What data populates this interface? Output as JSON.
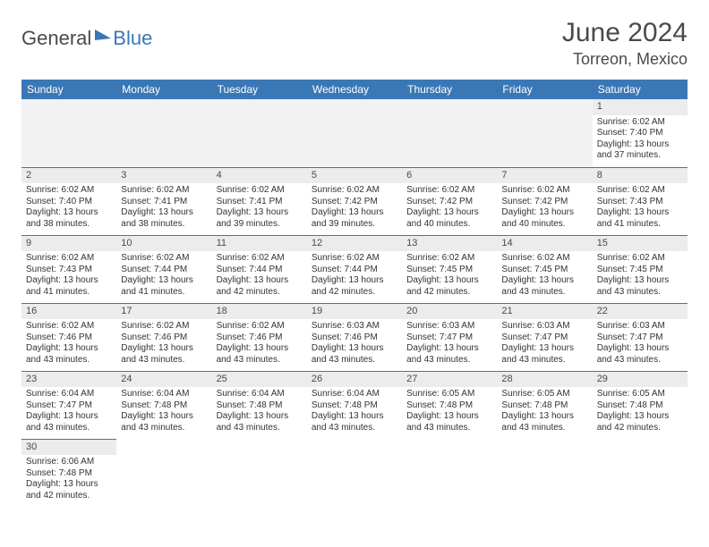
{
  "brand": {
    "part1": "General",
    "part2": "Blue"
  },
  "title": "June 2024",
  "location": "Torreon, Mexico",
  "colors": {
    "header_bg": "#3a78b5",
    "header_fg": "#ffffff",
    "daynum_bg": "#ececec",
    "border": "#3a78b5",
    "text": "#333333"
  },
  "fonts": {
    "title_pt": 30,
    "location_pt": 18,
    "header_pt": 12,
    "cell_pt": 10
  },
  "dayHeaders": [
    "Sunday",
    "Monday",
    "Tuesday",
    "Wednesday",
    "Thursday",
    "Friday",
    "Saturday"
  ],
  "weeks": [
    [
      null,
      null,
      null,
      null,
      null,
      null,
      {
        "n": 1,
        "sunrise": "6:02 AM",
        "sunset": "7:40 PM",
        "dl_h": 13,
        "dl_m": 37
      }
    ],
    [
      {
        "n": 2,
        "sunrise": "6:02 AM",
        "sunset": "7:40 PM",
        "dl_h": 13,
        "dl_m": 38
      },
      {
        "n": 3,
        "sunrise": "6:02 AM",
        "sunset": "7:41 PM",
        "dl_h": 13,
        "dl_m": 38
      },
      {
        "n": 4,
        "sunrise": "6:02 AM",
        "sunset": "7:41 PM",
        "dl_h": 13,
        "dl_m": 39
      },
      {
        "n": 5,
        "sunrise": "6:02 AM",
        "sunset": "7:42 PM",
        "dl_h": 13,
        "dl_m": 39
      },
      {
        "n": 6,
        "sunrise": "6:02 AM",
        "sunset": "7:42 PM",
        "dl_h": 13,
        "dl_m": 40
      },
      {
        "n": 7,
        "sunrise": "6:02 AM",
        "sunset": "7:42 PM",
        "dl_h": 13,
        "dl_m": 40
      },
      {
        "n": 8,
        "sunrise": "6:02 AM",
        "sunset": "7:43 PM",
        "dl_h": 13,
        "dl_m": 41
      }
    ],
    [
      {
        "n": 9,
        "sunrise": "6:02 AM",
        "sunset": "7:43 PM",
        "dl_h": 13,
        "dl_m": 41
      },
      {
        "n": 10,
        "sunrise": "6:02 AM",
        "sunset": "7:44 PM",
        "dl_h": 13,
        "dl_m": 41
      },
      {
        "n": 11,
        "sunrise": "6:02 AM",
        "sunset": "7:44 PM",
        "dl_h": 13,
        "dl_m": 42
      },
      {
        "n": 12,
        "sunrise": "6:02 AM",
        "sunset": "7:44 PM",
        "dl_h": 13,
        "dl_m": 42
      },
      {
        "n": 13,
        "sunrise": "6:02 AM",
        "sunset": "7:45 PM",
        "dl_h": 13,
        "dl_m": 42
      },
      {
        "n": 14,
        "sunrise": "6:02 AM",
        "sunset": "7:45 PM",
        "dl_h": 13,
        "dl_m": 43
      },
      {
        "n": 15,
        "sunrise": "6:02 AM",
        "sunset": "7:45 PM",
        "dl_h": 13,
        "dl_m": 43
      }
    ],
    [
      {
        "n": 16,
        "sunrise": "6:02 AM",
        "sunset": "7:46 PM",
        "dl_h": 13,
        "dl_m": 43
      },
      {
        "n": 17,
        "sunrise": "6:02 AM",
        "sunset": "7:46 PM",
        "dl_h": 13,
        "dl_m": 43
      },
      {
        "n": 18,
        "sunrise": "6:02 AM",
        "sunset": "7:46 PM",
        "dl_h": 13,
        "dl_m": 43
      },
      {
        "n": 19,
        "sunrise": "6:03 AM",
        "sunset": "7:46 PM",
        "dl_h": 13,
        "dl_m": 43
      },
      {
        "n": 20,
        "sunrise": "6:03 AM",
        "sunset": "7:47 PM",
        "dl_h": 13,
        "dl_m": 43
      },
      {
        "n": 21,
        "sunrise": "6:03 AM",
        "sunset": "7:47 PM",
        "dl_h": 13,
        "dl_m": 43
      },
      {
        "n": 22,
        "sunrise": "6:03 AM",
        "sunset": "7:47 PM",
        "dl_h": 13,
        "dl_m": 43
      }
    ],
    [
      {
        "n": 23,
        "sunrise": "6:04 AM",
        "sunset": "7:47 PM",
        "dl_h": 13,
        "dl_m": 43
      },
      {
        "n": 24,
        "sunrise": "6:04 AM",
        "sunset": "7:48 PM",
        "dl_h": 13,
        "dl_m": 43
      },
      {
        "n": 25,
        "sunrise": "6:04 AM",
        "sunset": "7:48 PM",
        "dl_h": 13,
        "dl_m": 43
      },
      {
        "n": 26,
        "sunrise": "6:04 AM",
        "sunset": "7:48 PM",
        "dl_h": 13,
        "dl_m": 43
      },
      {
        "n": 27,
        "sunrise": "6:05 AM",
        "sunset": "7:48 PM",
        "dl_h": 13,
        "dl_m": 43
      },
      {
        "n": 28,
        "sunrise": "6:05 AM",
        "sunset": "7:48 PM",
        "dl_h": 13,
        "dl_m": 43
      },
      {
        "n": 29,
        "sunrise": "6:05 AM",
        "sunset": "7:48 PM",
        "dl_h": 13,
        "dl_m": 42
      }
    ],
    [
      {
        "n": 30,
        "sunrise": "6:06 AM",
        "sunset": "7:48 PM",
        "dl_h": 13,
        "dl_m": 42
      },
      null,
      null,
      null,
      null,
      null,
      null
    ]
  ],
  "labels": {
    "sunrise": "Sunrise:",
    "sunset": "Sunset:",
    "daylight_prefix": "Daylight:",
    "hours_word": "hours",
    "and_word": "and",
    "minutes_word": "minutes."
  }
}
